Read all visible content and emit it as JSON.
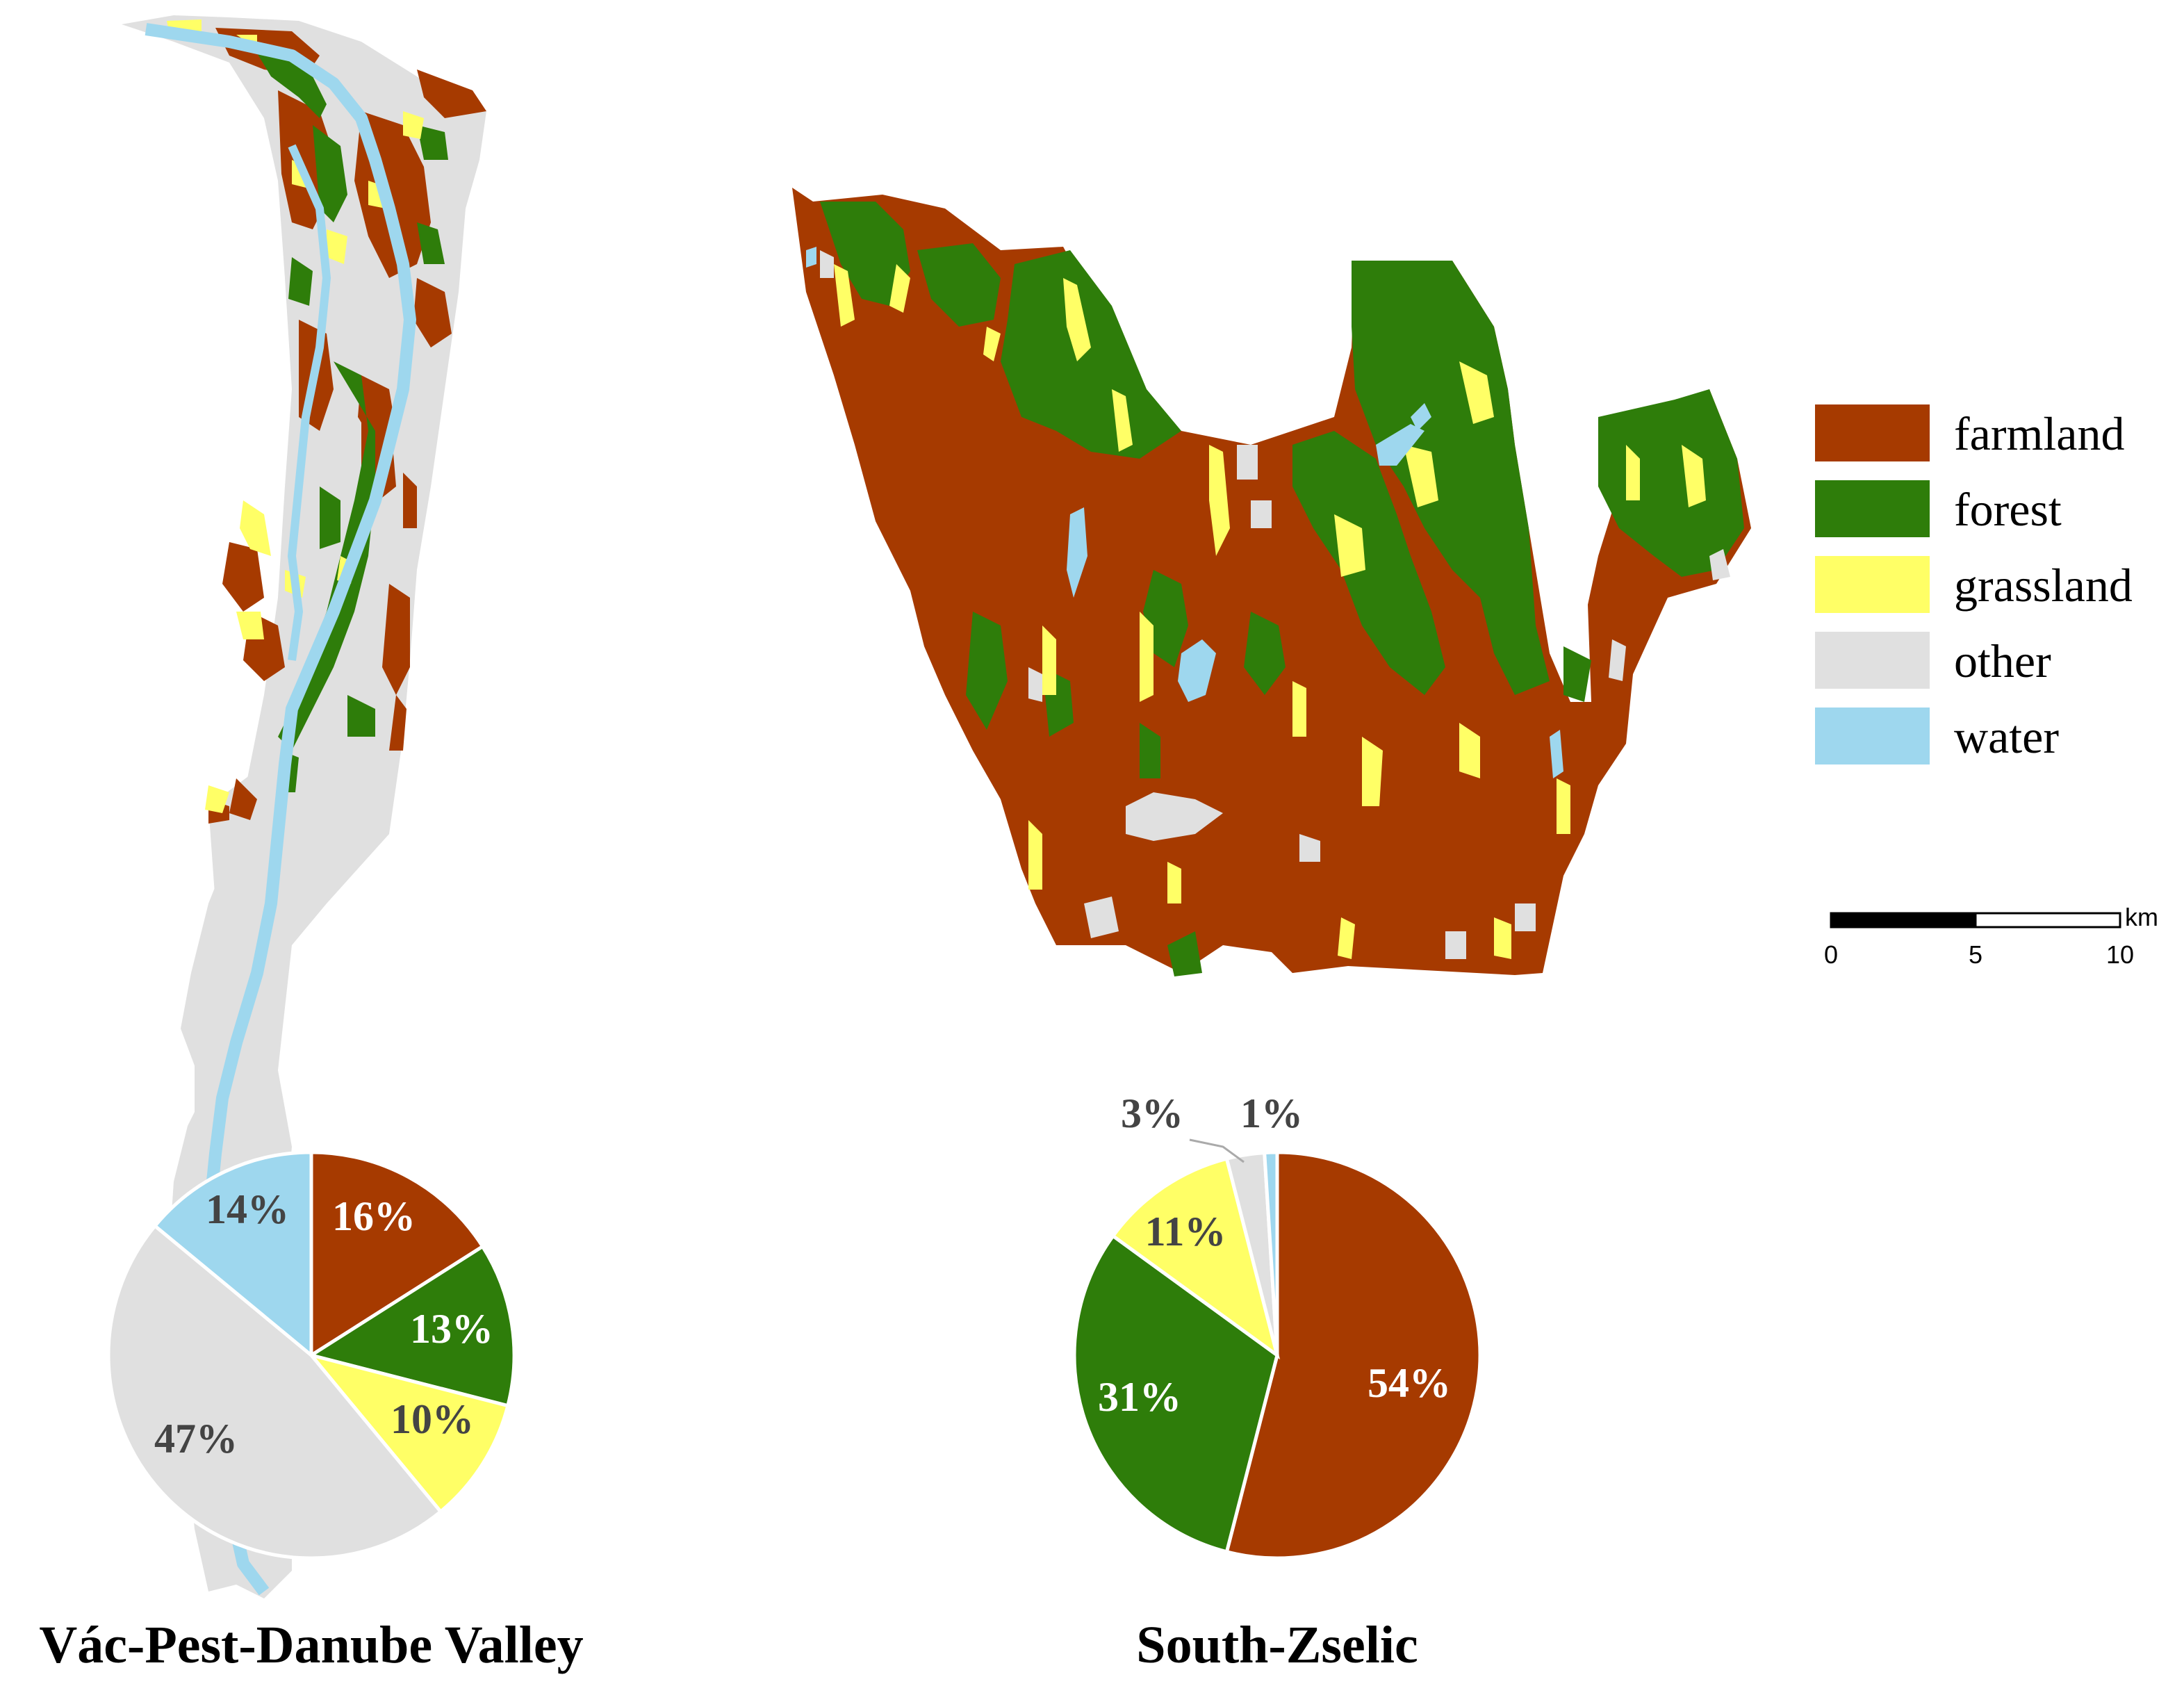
{
  "colors": {
    "farmland": "#A63A00",
    "forest": "#2E7D0A",
    "grassland": "#FFFF66",
    "other": "#E0E0E0",
    "water": "#9ED7EE"
  },
  "legend": {
    "items": [
      {
        "key": "farmland",
        "label": "farmland"
      },
      {
        "key": "forest",
        "label": "forest"
      },
      {
        "key": "grassland",
        "label": "grassland"
      },
      {
        "key": "other",
        "label": "other"
      },
      {
        "key": "water",
        "label": "water"
      }
    ]
  },
  "scale_bar": {
    "unit": "km",
    "ticks": [
      "0",
      "5",
      "10"
    ]
  },
  "regions": [
    {
      "name": "Vác-Pest-Danube Valley"
    },
    {
      "name": "South-Zselic"
    }
  ],
  "chart_data": [
    {
      "type": "pie",
      "region": "Vác-Pest-Danube Valley",
      "categories": [
        "farmland",
        "forest",
        "grassland",
        "other",
        "water"
      ],
      "values": [
        16,
        13,
        10,
        47,
        14
      ],
      "labels": [
        "16%",
        "13%",
        "10%",
        "47%",
        "14%"
      ]
    },
    {
      "type": "pie",
      "region": "South-Zselic",
      "categories": [
        "farmland",
        "forest",
        "grassland",
        "other",
        "water"
      ],
      "values": [
        54,
        31,
        11,
        3,
        1
      ],
      "labels": [
        "54%",
        "31%",
        "11%",
        "3%",
        "1%"
      ]
    }
  ]
}
